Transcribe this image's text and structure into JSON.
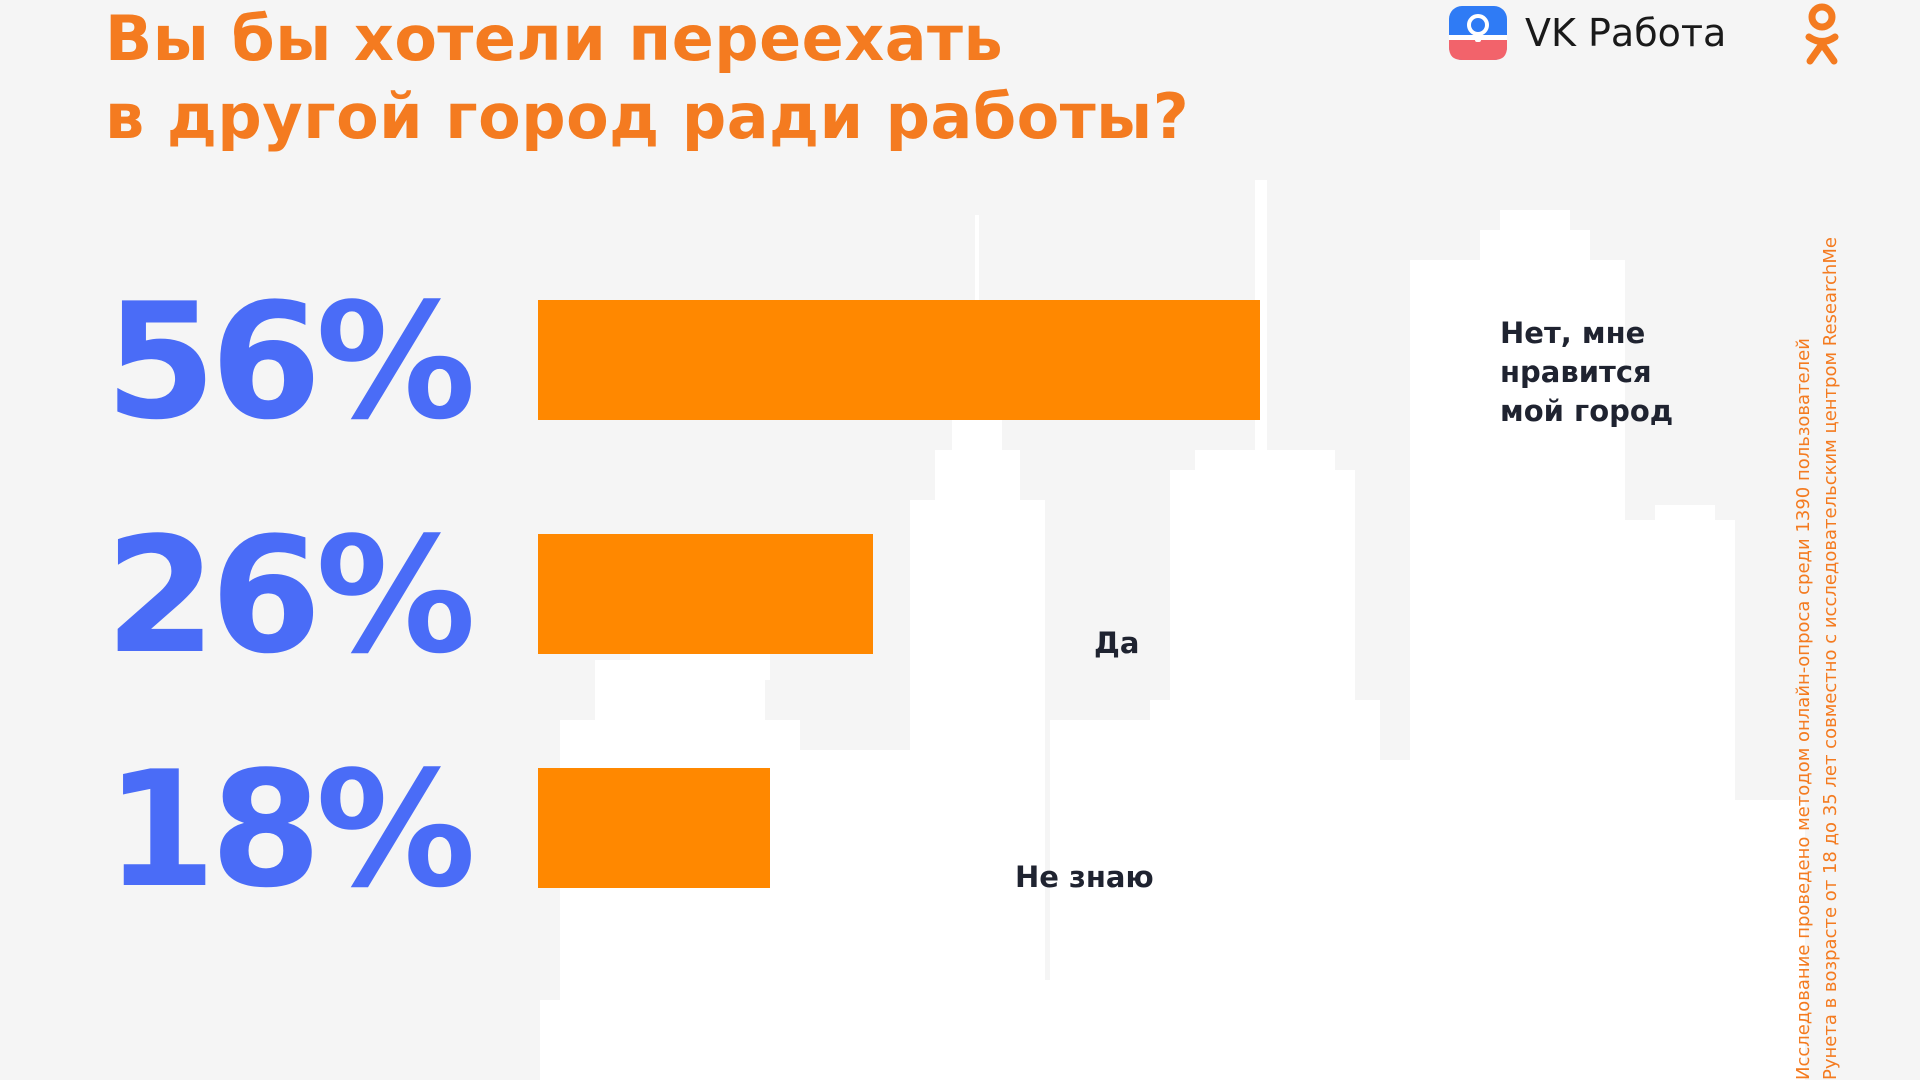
{
  "header": {
    "title_lines": [
      "Вы бы хотели переехать",
      "в другой город ради работы?"
    ]
  },
  "brand": {
    "name": "VK Работа",
    "icon": "vk-work-briefcase-icon",
    "secondary_icon": "odnoklassniki-icon"
  },
  "chart_data": {
    "type": "bar",
    "orientation": "horizontal",
    "categories": [
      "Нет, мне нравится мой город",
      "Да",
      "Не знаю"
    ],
    "category_lines": [
      [
        "Нет, мне",
        "нравится",
        "мой город"
      ],
      [
        "Да"
      ],
      [
        "Не знаю"
      ]
    ],
    "values": [
      56,
      26,
      18
    ],
    "value_labels": [
      "56%",
      "26%",
      "18%"
    ],
    "unit": "%",
    "title": "Вы бы хотели переехать в другой город ради работы?",
    "xlim": [
      0,
      100
    ],
    "grid": false
  },
  "footnote": {
    "lines": [
      "Исследование проведено методом онлайн-опроса среди 1390 пользователей",
      "Рунета в возрасте от 18 до 35 лет совместно с исследовательским центром ResearchMe"
    ]
  },
  "colors": {
    "title": "#f47b20",
    "bar": "#ff8800",
    "percent": "#4a6cf7",
    "label": "#1f2330",
    "background": "#f5f5f5",
    "skyline": "#ffffff"
  }
}
